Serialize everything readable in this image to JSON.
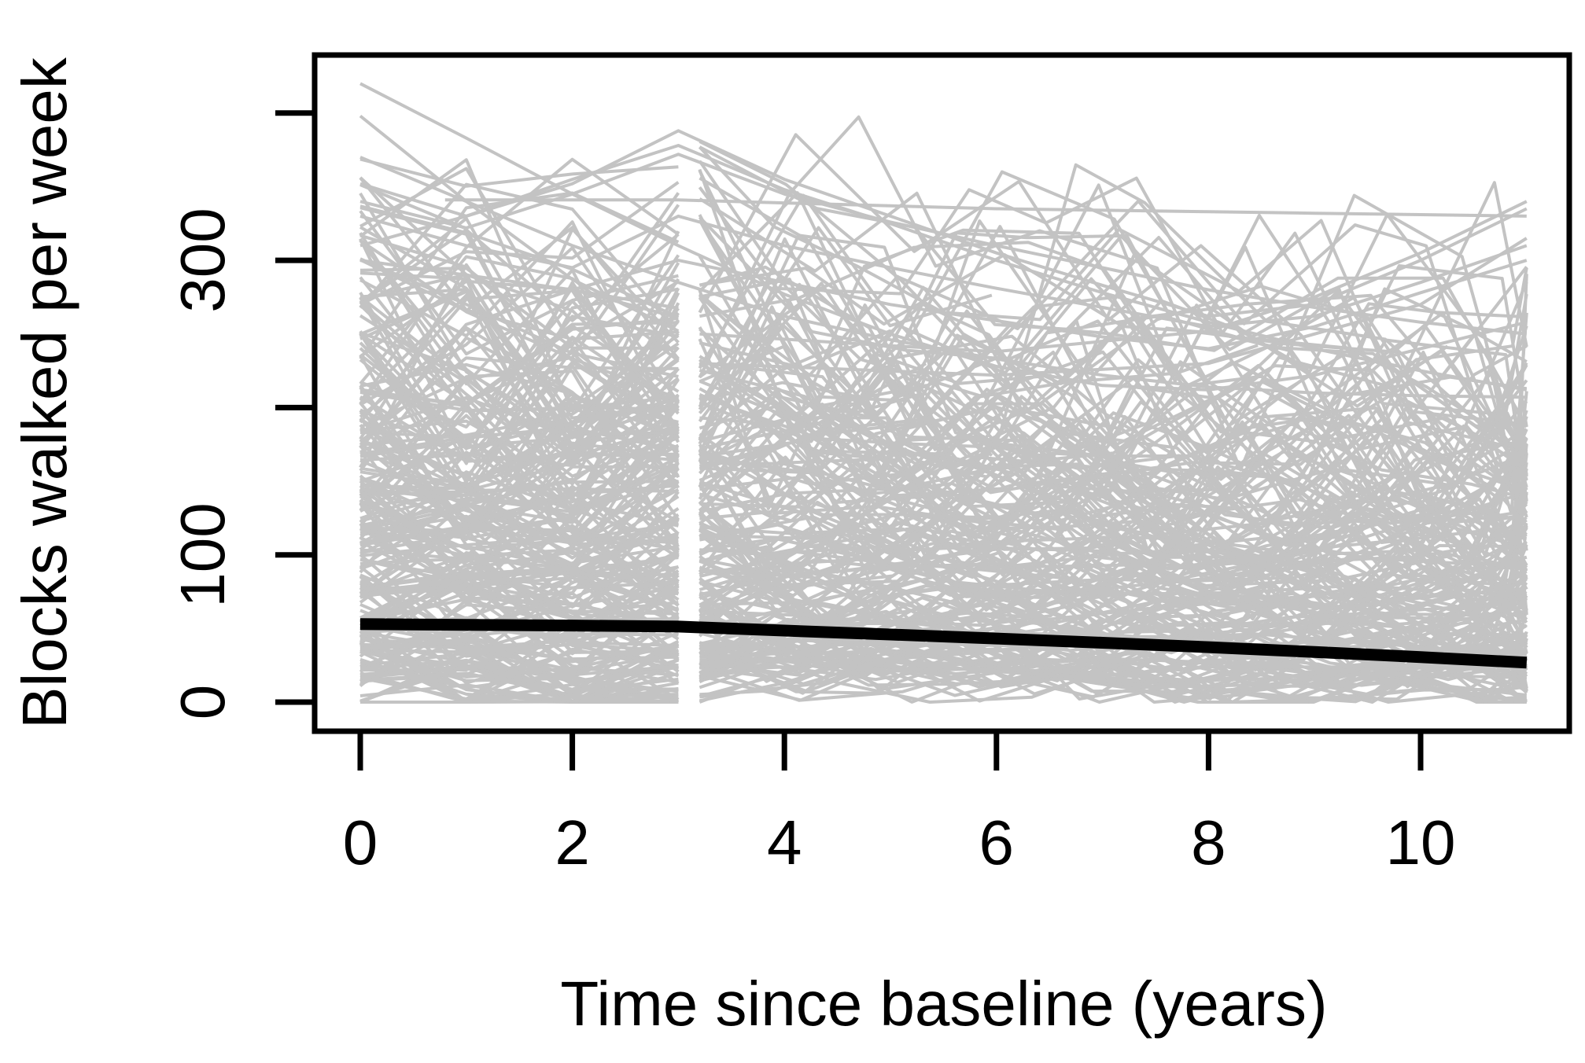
{
  "figure": {
    "x_title": "Time since baseline (years)",
    "y_title": "Blocks walked per week"
  },
  "chart_data": {
    "type": "line",
    "title": "",
    "xlabel": "Time since baseline (years)",
    "ylabel": "Blocks walked per week",
    "xlim": [
      -0.43,
      11.4
    ],
    "ylim": [
      -20,
      440
    ],
    "grid": false,
    "legend": "none",
    "x_ticks": [
      {
        "value": 0,
        "label": "0"
      },
      {
        "value": 2,
        "label": "2"
      },
      {
        "value": 4,
        "label": "4"
      },
      {
        "value": 6,
        "label": "6"
      },
      {
        "value": 8,
        "label": "8"
      },
      {
        "value": 10,
        "label": "10"
      }
    ],
    "y_ticks": [
      {
        "value": 0,
        "label": "0"
      },
      {
        "value": 100,
        "label": "100"
      },
      {
        "value": 200,
        "label": ""
      },
      {
        "value": 300,
        "label": "300"
      },
      {
        "value": 400,
        "label": ""
      }
    ],
    "colors": {
      "individual_lines": "#c3c3c3",
      "mean_line": "#000000",
      "axis": "#000000",
      "background": "#ffffff"
    },
    "series": [
      {
        "name": "population-mean-trajectory",
        "color": "#000000",
        "stroke_width": 15,
        "x": [
          0,
          1,
          2,
          3,
          4,
          5,
          6,
          7,
          8,
          9,
          10,
          11
        ],
        "y": [
          53,
          52.5,
          52,
          51.3,
          48.6,
          45.9,
          43.2,
          40.3,
          37.3,
          34,
          30.6,
          26.8
        ]
      }
    ],
    "spaghetti": {
      "description": "Individual subject trajectories (observed blocks walked per week). Dense annual visits at years 0-3 for all subjects, then follow-up visits roughly every 0.6-1.1 years from year 3.2 to year 11 for most subjects; a visible vertical white gap occurs just after year 3 where phase-1 lines end and phase-2 lines begin.",
      "color": "#c3c3c3",
      "stroke_width": 4,
      "count": 240,
      "seed": 20,
      "baseline_min": 15,
      "baseline_max": 295,
      "baseline_skew": 1.35,
      "phase1_visits": [
        0,
        1,
        2,
        3
      ],
      "phase2_start": 3.2,
      "phase2_end": 11,
      "continue_probability": 0.86,
      "dropout_probability": 0.09,
      "value_range": [
        0,
        428
      ]
    },
    "outlier_trajectories": [
      {
        "x": [
          0,
          1,
          2,
          3,
          4,
          5,
          6,
          7,
          8,
          9,
          10,
          11
        ],
        "y": [
          420,
          383,
          345,
          310,
          277,
          250,
          228,
          215,
          212,
          222,
          240,
          258
        ]
      },
      {
        "x": [
          0,
          1,
          2,
          3,
          4,
          5,
          6,
          7,
          8,
          9,
          10,
          11
        ],
        "y": [
          352,
          330,
          352,
          388,
          355,
          330,
          305,
          283,
          262,
          270,
          300,
          335
        ]
      },
      {
        "x": [
          0,
          1,
          2,
          3,
          4,
          5,
          6,
          7,
          8,
          9,
          10,
          11
        ],
        "y": [
          340,
          322,
          345,
          372,
          345,
          326,
          310,
          295,
          280,
          268,
          258,
          250
        ]
      },
      {
        "x": [
          0,
          1,
          2,
          3,
          4,
          5,
          6,
          7,
          8,
          9,
          10,
          11
        ],
        "y": [
          330,
          310,
          295,
          330,
          310,
          295,
          281,
          268,
          255,
          262,
          285,
          310
        ]
      },
      {
        "x": [
          0.8,
          2,
          3,
          4,
          5,
          6,
          7,
          8,
          9,
          10,
          11
        ],
        "y": [
          341,
          341,
          341,
          339,
          337,
          335,
          334,
          333,
          332,
          331,
          330
        ]
      },
      {
        "x": [
          0,
          1,
          2,
          3,
          4,
          5,
          6,
          7,
          8,
          9,
          10,
          11
        ],
        "y": [
          370,
          340,
          310,
          285,
          262,
          246,
          233,
          222,
          214,
          210,
          208,
          207
        ]
      },
      {
        "x": [
          0,
          1,
          2,
          3,
          4,
          5,
          6,
          7,
          8,
          9,
          10,
          11
        ],
        "y": [
          310,
          330,
          355,
          378,
          348,
          325,
          300,
          278,
          258,
          240,
          225,
          212
        ]
      },
      {
        "x": [
          0,
          2,
          3,
          5,
          7,
          8,
          9,
          10,
          11
        ],
        "y": [
          300,
          280,
          300,
          270,
          248,
          240,
          255,
          278,
          300
        ]
      },
      {
        "x": [
          3.2,
          5,
          6,
          8,
          9,
          10,
          11
        ],
        "y": [
          250,
          242,
          238,
          252,
          275,
          305,
          340
        ]
      },
      {
        "x": [
          3.2,
          6,
          8,
          10,
          11
        ],
        "y": [
          230,
          222,
          230,
          270,
          315
        ]
      },
      {
        "x": [
          0,
          1,
          2,
          3
        ],
        "y": [
          398,
          340,
          287,
          252
        ]
      }
    ]
  }
}
